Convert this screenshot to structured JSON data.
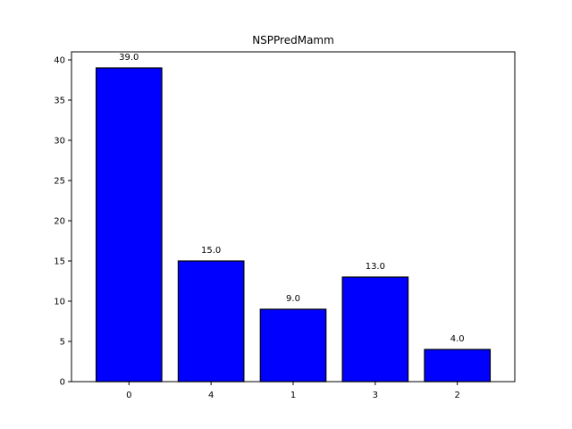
{
  "chart_data": {
    "type": "bar",
    "title": "NSPPredMamm",
    "xlabel": "",
    "ylabel": "",
    "categories": [
      "0",
      "4",
      "1",
      "3",
      "2"
    ],
    "values": [
      39.0,
      15.0,
      9.0,
      13.0,
      4.0
    ],
    "data_labels": [
      "39.0",
      "15.0",
      "9.0",
      "13.0",
      "4.0"
    ],
    "ylim": [
      0,
      41
    ],
    "yticks": [
      0,
      5,
      10,
      15,
      20,
      25,
      30,
      35,
      40
    ],
    "ytick_labels": [
      "0",
      "5",
      "10",
      "15",
      "20",
      "25",
      "30",
      "35",
      "40"
    ],
    "bar_color": "#0000ff",
    "edge_color": "#000000",
    "grid": false,
    "legend": "none"
  }
}
